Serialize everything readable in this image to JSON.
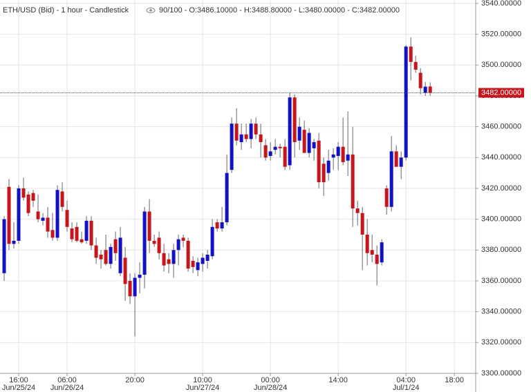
{
  "chart_data": {
    "type": "candlestick",
    "title": "ETH/USD (Bid) - 1 hour - Candlestick",
    "info": "90/100 - O:3486.10000 - H:3488.80000 - L:3480.00000 - C:3482.00000",
    "open": [
      3365,
      3421,
      3384,
      3386,
      3420,
      3416,
      3417,
      3405,
      3399,
      3401,
      3393,
      3388,
      3418,
      3406,
      3394,
      3395,
      3387,
      3386,
      3399,
      3383,
      3377,
      3380,
      3371,
      3387,
      3365,
      3375,
      3360,
      3350,
      3362,
      3364,
      3405,
      3386,
      3388,
      3378,
      3374,
      3371,
      3380,
      3388,
      3386,
      3373,
      3367,
      3371,
      3373,
      3376,
      3398,
      3394,
      3398,
      3432,
      3462,
      3450,
      3455,
      3452,
      3462,
      3455,
      3448,
      3441,
      3445,
      3447,
      3447,
      3435,
      3479,
      3451,
      3458,
      3443,
      3446,
      3451,
      3436,
      3430,
      3440,
      3441,
      3447,
      3438,
      3442,
      3407,
      3404,
      3390,
      3380,
      3377,
      3372,
      3420,
      3408,
      3444,
      3434,
      3440,
      3512,
      3502,
      3495,
      3482,
      3486.1
    ],
    "high": [
      3402,
      3426,
      3398,
      3422,
      3427,
      3418,
      3419,
      3416,
      3404,
      3408,
      3404,
      3422,
      3424,
      3412,
      3398,
      3398,
      3392,
      3402,
      3402,
      3388,
      3380,
      3390,
      3384,
      3392,
      3395,
      3382,
      3365,
      3365,
      3372,
      3408,
      3413,
      3390,
      3392,
      3384,
      3378,
      3384,
      3390,
      3390,
      3388,
      3376,
      3375,
      3378,
      3380,
      3400,
      3400,
      3408,
      3442,
      3466,
      3472,
      3462,
      3462,
      3465,
      3466,
      3462,
      3452,
      3450,
      3452,
      3449,
      3452,
      3482,
      3481,
      3466,
      3464,
      3459,
      3452,
      3456,
      3440,
      3445,
      3446,
      3450,
      3466,
      3470,
      3460,
      3412,
      3408,
      3400,
      3390,
      3383,
      3387,
      3422,
      3454,
      3448,
      3444,
      3513,
      3518,
      3506,
      3498,
      3489,
      3488.8
    ],
    "low": [
      3360,
      3380,
      3381,
      3384,
      3412,
      3402,
      3408,
      3398,
      3396,
      3388,
      3386,
      3386,
      3405,
      3392,
      3385,
      3385,
      3384,
      3384,
      3380,
      3371,
      3368,
      3370,
      3368,
      3373,
      3363,
      3347,
      3345,
      3324,
      3352,
      3355,
      3378,
      3382,
      3374,
      3366,
      3365,
      3362,
      3370,
      3382,
      3366,
      3365,
      3363,
      3366,
      3368,
      3374,
      3392,
      3392,
      3396,
      3430,
      3448,
      3445,
      3450,
      3446,
      3452,
      3440,
      3438,
      3438,
      3442,
      3440,
      3432,
      3432,
      3440,
      3445,
      3443,
      3440,
      3438,
      3420,
      3415,
      3425,
      3432,
      3432,
      3435,
      3428,
      3395,
      3396,
      3367,
      3370,
      3372,
      3357,
      3370,
      3403,
      3405,
      3434,
      3426,
      3438,
      3490,
      3495,
      3481,
      3480,
      3480
    ],
    "close": [
      3400,
      3384,
      3386,
      3420,
      3414,
      3404,
      3412,
      3400,
      3401,
      3392,
      3388,
      3419,
      3408,
      3395,
      3387,
      3386,
      3385,
      3399,
      3383,
      3375,
      3374,
      3371,
      3382,
      3378,
      3388,
      3358,
      3350,
      3362,
      3364,
      3405,
      3386,
      3384,
      3378,
      3370,
      3371,
      3380,
      3387,
      3386,
      3368,
      3369,
      3372,
      3375,
      3377,
      3395,
      3394,
      3398,
      3430,
      3462,
      3451,
      3455,
      3452,
      3462,
      3455,
      3450,
      3440,
      3444,
      3447,
      3446,
      3434,
      3479,
      3450,
      3460,
      3443,
      3456,
      3450,
      3424,
      3424,
      3438,
      3442,
      3447,
      3437,
      3442,
      3407,
      3404,
      3390,
      3378,
      3377,
      3371,
      3385,
      3408,
      3444,
      3434,
      3440,
      3512,
      3502,
      3497,
      3485,
      3486,
      3482
    ],
    "up_color": "#1212c4",
    "down_color": "#c4161c",
    "xlim": [
      -0.86,
      97.4
    ],
    "xticks": [
      {
        "value": 3,
        "label": "16:00",
        "date": "Jun/25/24"
      },
      {
        "value": 13,
        "label": "06:00",
        "date": "Jun/26/24"
      },
      {
        "value": 27,
        "label": "20:00"
      },
      {
        "value": 41,
        "label": "10:00",
        "date": "Jun/27/24"
      },
      {
        "value": 55,
        "label": "00:00",
        "date": "Jun/28/24"
      },
      {
        "value": 69,
        "label": "14:00"
      },
      {
        "value": 83,
        "label": "04:00",
        "date": "Jul/1/24"
      },
      {
        "value": 93,
        "label": "18:00"
      }
    ],
    "ylim": [
      3300,
      3542.2
    ],
    "yticks": [
      {
        "value": 3300,
        "label": "3300.00000"
      },
      {
        "value": 3320,
        "label": "3320.00000"
      },
      {
        "value": 3340,
        "label": "3340.00000"
      },
      {
        "value": 3360,
        "label": "3360.00000"
      },
      {
        "value": 3380,
        "label": "3380.00000"
      },
      {
        "value": 3400,
        "label": "3400.00000"
      },
      {
        "value": 3420,
        "label": "3420.00000"
      },
      {
        "value": 3440,
        "label": "3440.00000"
      },
      {
        "value": 3460,
        "label": "3460.00000"
      },
      {
        "value": 3480,
        "label": "3480.00000"
      },
      {
        "value": 3500,
        "label": "3500.00000"
      },
      {
        "value": 3520,
        "label": "3520.00000"
      },
      {
        "value": 3540,
        "label": "3540.00000"
      }
    ],
    "last_price": {
      "value": 3482,
      "label": "3482.00000",
      "color": "#c4161c"
    },
    "grid": true
  }
}
